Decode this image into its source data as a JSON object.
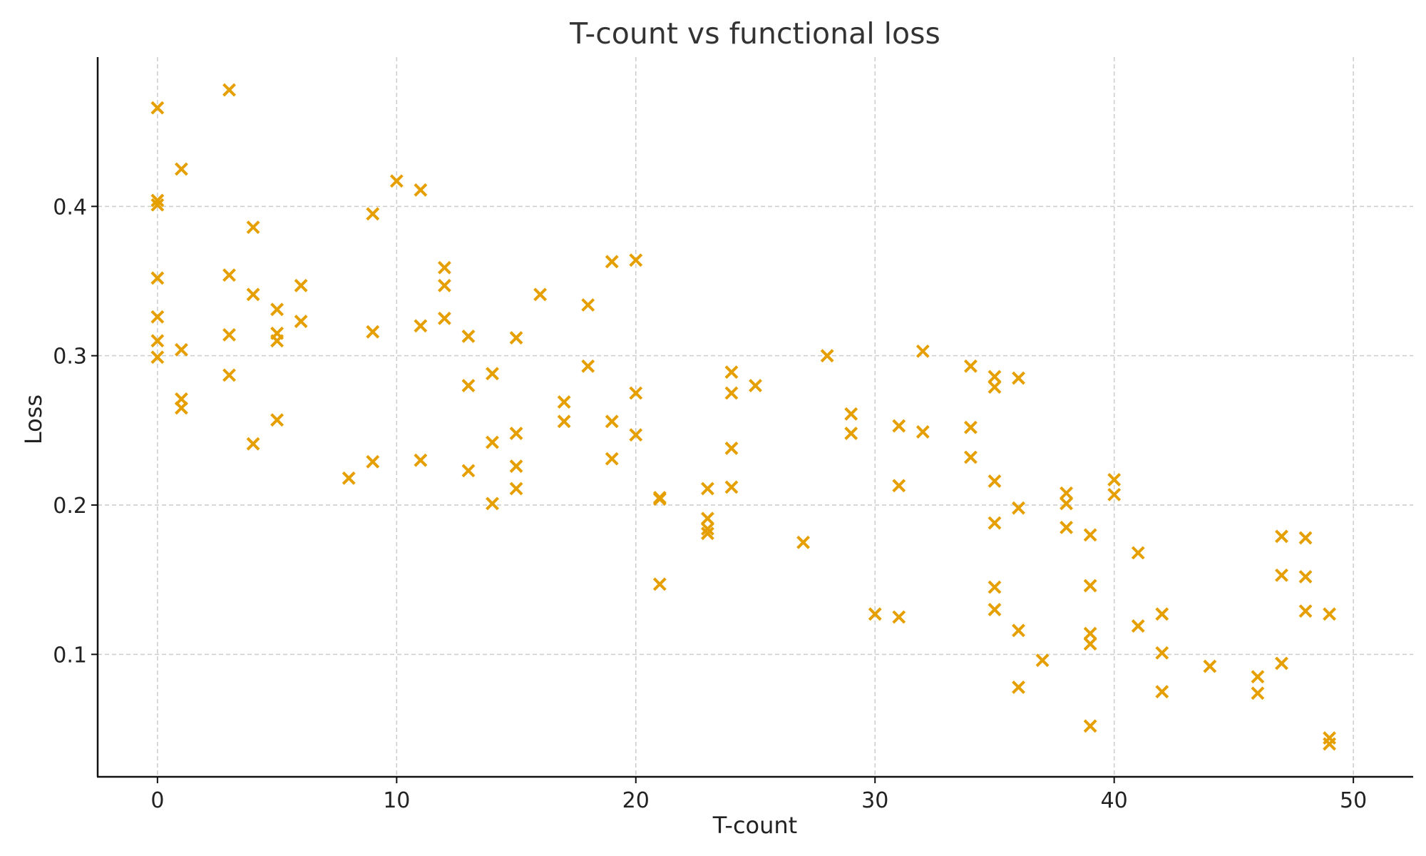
{
  "chart_data": {
    "type": "scatter",
    "title": "T-count vs functional loss",
    "xlabel": "T-count",
    "ylabel": "Loss",
    "xlim": [
      -2.5,
      52.5
    ],
    "ylim": [
      0.018,
      0.5
    ],
    "xticks": [
      0,
      10,
      20,
      30,
      40,
      50
    ],
    "yticks": [
      0.1,
      0.2,
      0.3,
      0.4
    ],
    "grid": true,
    "marker": "x",
    "color": "#e69f00",
    "points": [
      [
        0,
        0.466
      ],
      [
        0,
        0.404
      ],
      [
        0,
        0.401
      ],
      [
        0,
        0.352
      ],
      [
        0,
        0.326
      ],
      [
        0,
        0.31
      ],
      [
        0,
        0.299
      ],
      [
        1,
        0.425
      ],
      [
        1,
        0.304
      ],
      [
        1,
        0.271
      ],
      [
        1,
        0.265
      ],
      [
        3,
        0.478
      ],
      [
        3,
        0.354
      ],
      [
        3,
        0.314
      ],
      [
        3,
        0.287
      ],
      [
        4,
        0.386
      ],
      [
        4,
        0.341
      ],
      [
        4,
        0.241
      ],
      [
        5,
        0.331
      ],
      [
        5,
        0.315
      ],
      [
        5,
        0.31
      ],
      [
        5,
        0.257
      ],
      [
        6,
        0.347
      ],
      [
        6,
        0.323
      ],
      [
        8,
        0.218
      ],
      [
        9,
        0.395
      ],
      [
        9,
        0.316
      ],
      [
        9,
        0.229
      ],
      [
        10,
        0.417
      ],
      [
        11,
        0.411
      ],
      [
        11,
        0.32
      ],
      [
        11,
        0.23
      ],
      [
        12,
        0.359
      ],
      [
        12,
        0.347
      ],
      [
        12,
        0.325
      ],
      [
        13,
        0.313
      ],
      [
        13,
        0.28
      ],
      [
        13,
        0.223
      ],
      [
        14,
        0.288
      ],
      [
        14,
        0.242
      ],
      [
        14,
        0.201
      ],
      [
        15,
        0.312
      ],
      [
        15,
        0.248
      ],
      [
        15,
        0.226
      ],
      [
        15,
        0.211
      ],
      [
        16,
        0.341
      ],
      [
        17,
        0.269
      ],
      [
        17,
        0.256
      ],
      [
        18,
        0.334
      ],
      [
        18,
        0.293
      ],
      [
        19,
        0.363
      ],
      [
        19,
        0.256
      ],
      [
        19,
        0.231
      ],
      [
        20,
        0.364
      ],
      [
        20,
        0.275
      ],
      [
        20,
        0.247
      ],
      [
        21,
        0.205
      ],
      [
        21,
        0.204
      ],
      [
        21,
        0.147
      ],
      [
        23,
        0.211
      ],
      [
        23,
        0.191
      ],
      [
        23,
        0.184
      ],
      [
        23,
        0.181
      ],
      [
        24,
        0.289
      ],
      [
        24,
        0.275
      ],
      [
        24,
        0.238
      ],
      [
        24,
        0.212
      ],
      [
        25,
        0.28
      ],
      [
        27,
        0.175
      ],
      [
        28,
        0.3
      ],
      [
        29,
        0.261
      ],
      [
        29,
        0.248
      ],
      [
        30,
        0.127
      ],
      [
        31,
        0.253
      ],
      [
        31,
        0.213
      ],
      [
        31,
        0.125
      ],
      [
        32,
        0.303
      ],
      [
        32,
        0.249
      ],
      [
        34,
        0.293
      ],
      [
        34,
        0.252
      ],
      [
        34,
        0.232
      ],
      [
        35,
        0.286
      ],
      [
        35,
        0.279
      ],
      [
        35,
        0.216
      ],
      [
        35,
        0.188
      ],
      [
        35,
        0.145
      ],
      [
        35,
        0.13
      ],
      [
        36,
        0.285
      ],
      [
        36,
        0.198
      ],
      [
        36,
        0.116
      ],
      [
        36,
        0.078
      ],
      [
        37,
        0.096
      ],
      [
        38,
        0.208
      ],
      [
        38,
        0.201
      ],
      [
        38,
        0.185
      ],
      [
        39,
        0.18
      ],
      [
        39,
        0.146
      ],
      [
        39,
        0.114
      ],
      [
        39,
        0.107
      ],
      [
        39,
        0.052
      ],
      [
        40,
        0.217
      ],
      [
        40,
        0.207
      ],
      [
        41,
        0.168
      ],
      [
        41,
        0.119
      ],
      [
        42,
        0.127
      ],
      [
        42,
        0.101
      ],
      [
        42,
        0.075
      ],
      [
        44,
        0.092
      ],
      [
        46,
        0.085
      ],
      [
        46,
        0.074
      ],
      [
        47,
        0.179
      ],
      [
        47,
        0.153
      ],
      [
        47,
        0.094
      ],
      [
        48,
        0.178
      ],
      [
        48,
        0.152
      ],
      [
        48,
        0.129
      ],
      [
        49,
        0.127
      ],
      [
        49,
        0.044
      ],
      [
        49,
        0.04
      ]
    ]
  }
}
